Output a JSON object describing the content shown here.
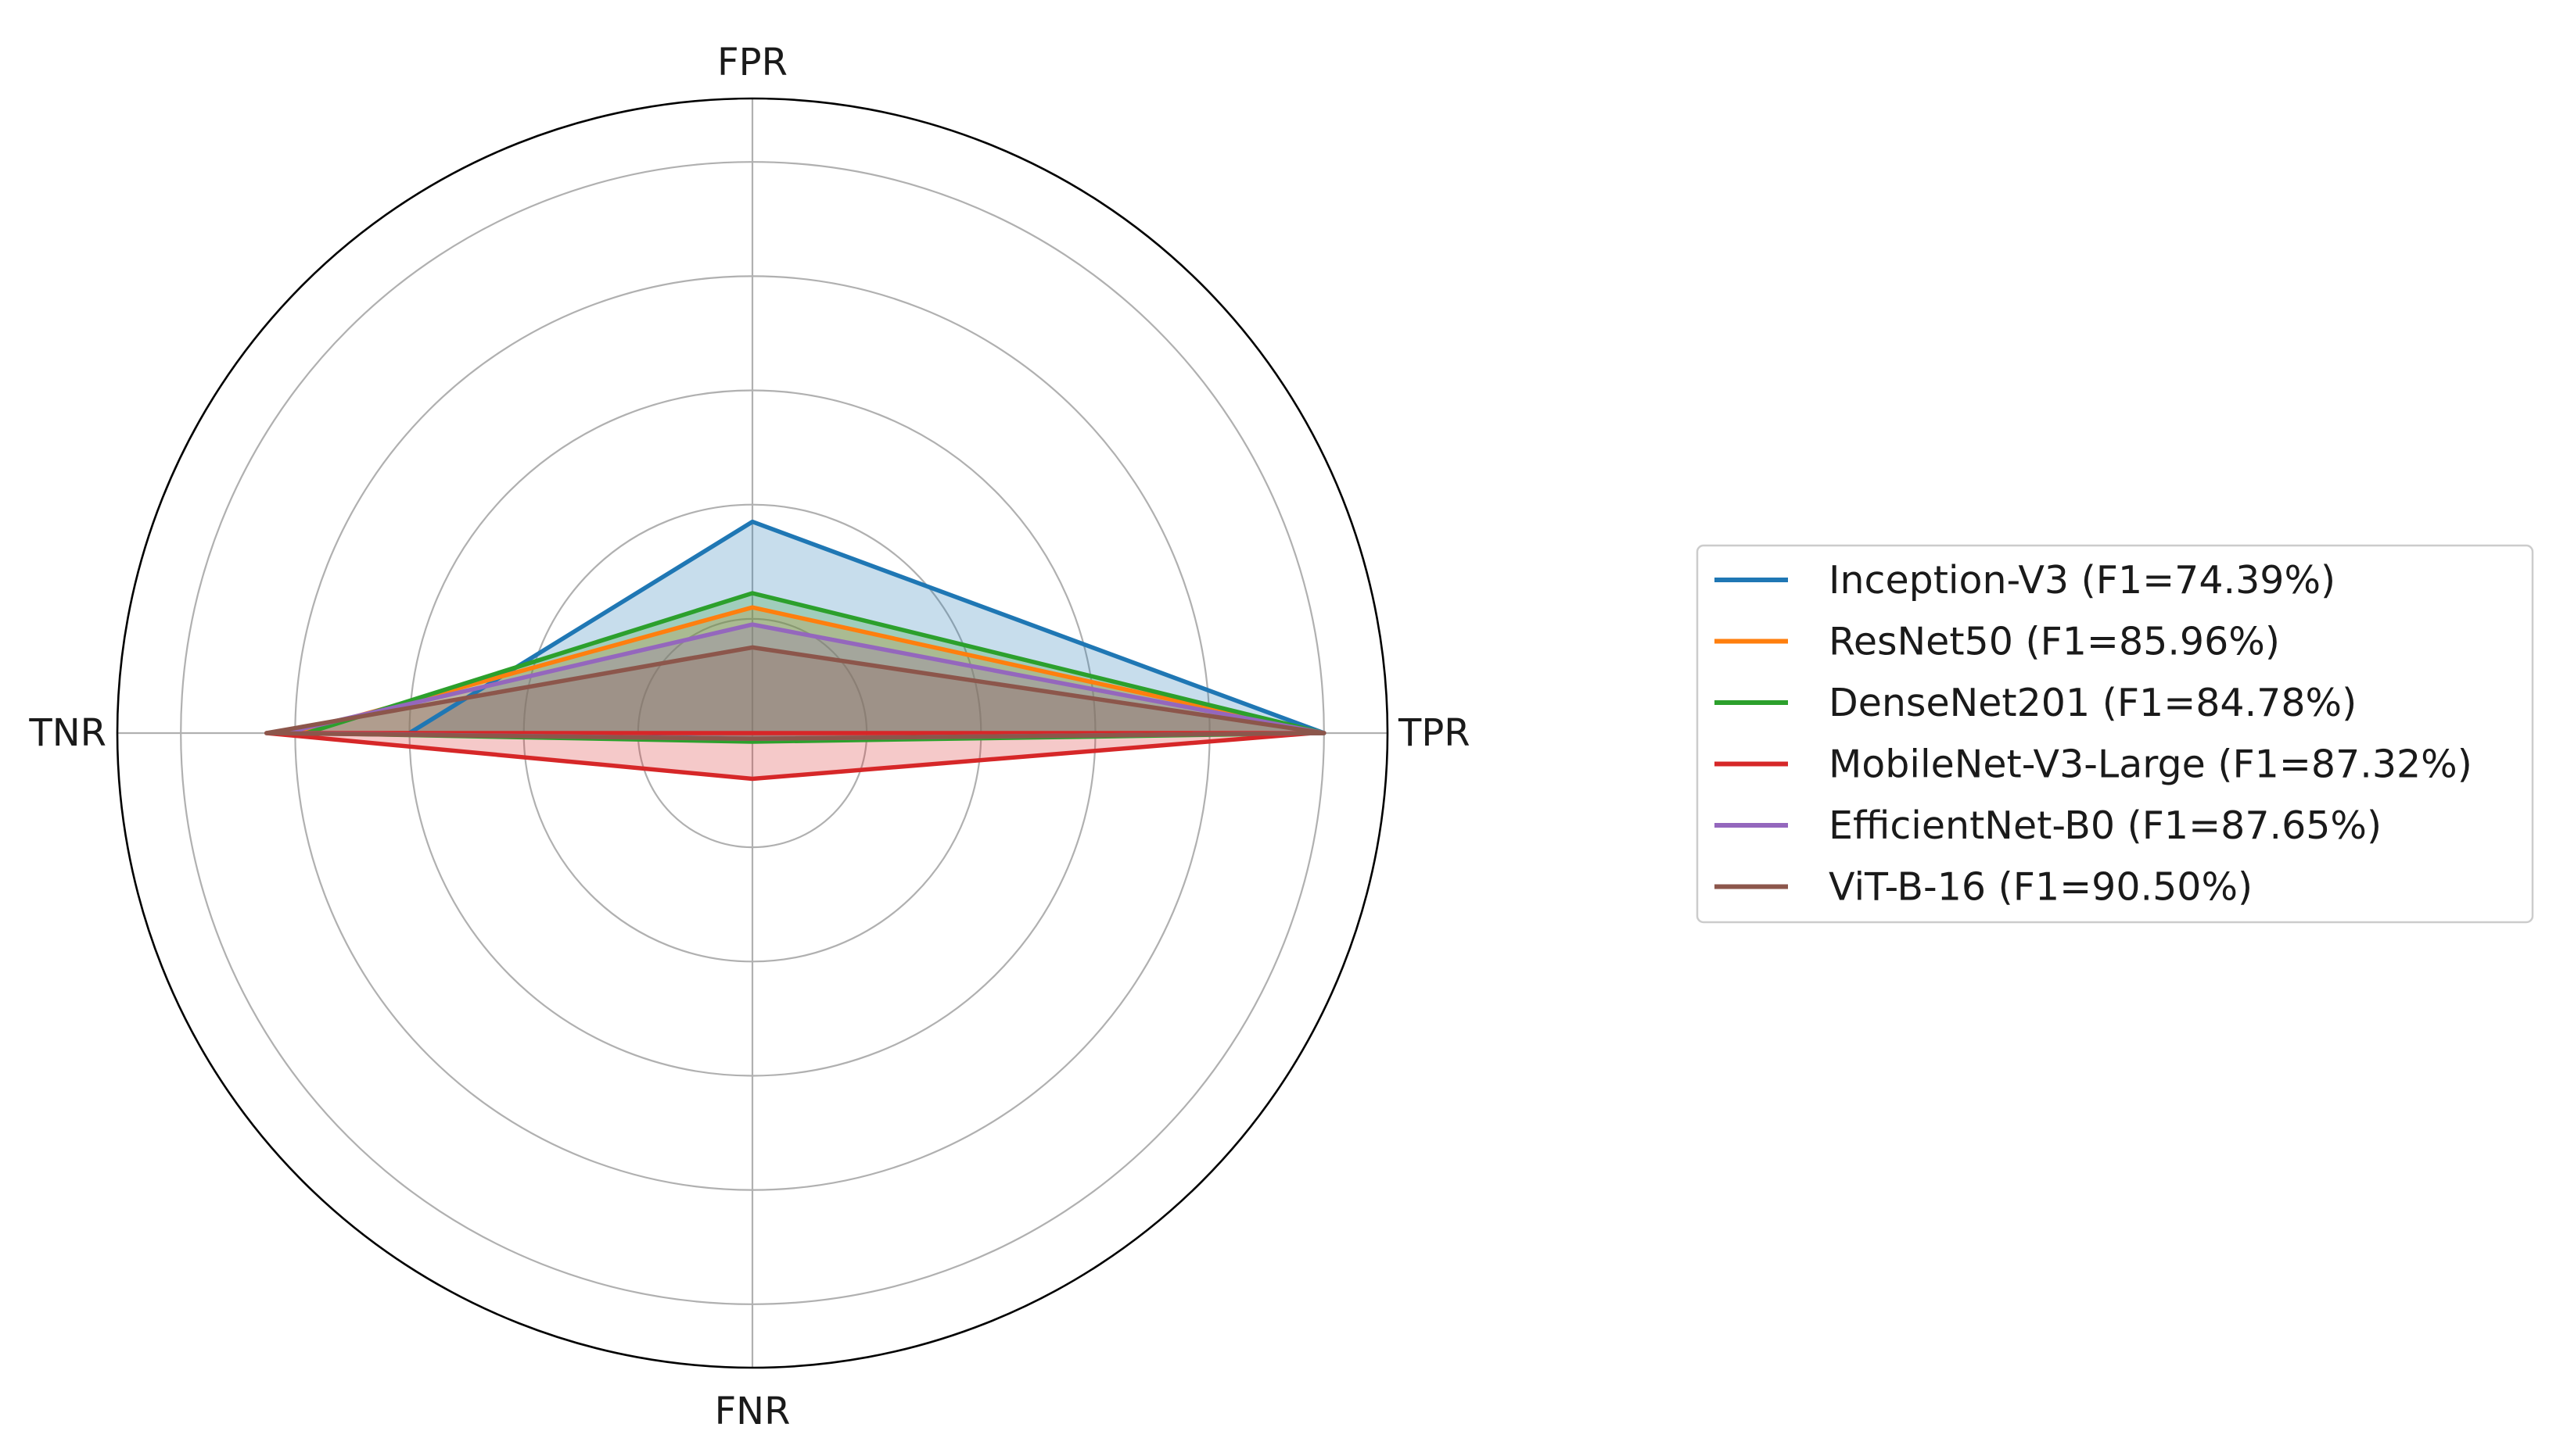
{
  "chart_data": {
    "type": "radar",
    "axes": [
      "TPR",
      "FPR",
      "TNR",
      "FNR"
    ],
    "rlim": [
      0,
      1
    ],
    "grid": true,
    "legend_position": "right",
    "series": [
      {
        "name": "Inception-V3 (F1=74.39%)",
        "color": "#1f77b4",
        "values": [
          1.0,
          0.37,
          0.6,
          0.01
        ]
      },
      {
        "name": "ResNet50 (F1=85.96%)",
        "color": "#ff7f0e",
        "values": [
          1.0,
          0.22,
          0.8,
          0.01
        ]
      },
      {
        "name": "DenseNet201 (F1=84.78%)",
        "color": "#2ca02c",
        "values": [
          1.0,
          0.245,
          0.78,
          0.015
        ]
      },
      {
        "name": "MobileNet-V3-Large (F1=87.32%)",
        "color": "#d62728",
        "values": [
          0.98,
          0.0,
          0.85,
          0.08
        ]
      },
      {
        "name": "EfficientNet-B0 (F1=87.65%)",
        "color": "#9467bd",
        "values": [
          1.0,
          0.19,
          0.82,
          0.01
        ]
      },
      {
        "name": "ViT-B-16 (F1=90.50%)",
        "color": "#8c564b",
        "values": [
          1.0,
          0.15,
          0.85,
          0.01
        ]
      }
    ]
  }
}
